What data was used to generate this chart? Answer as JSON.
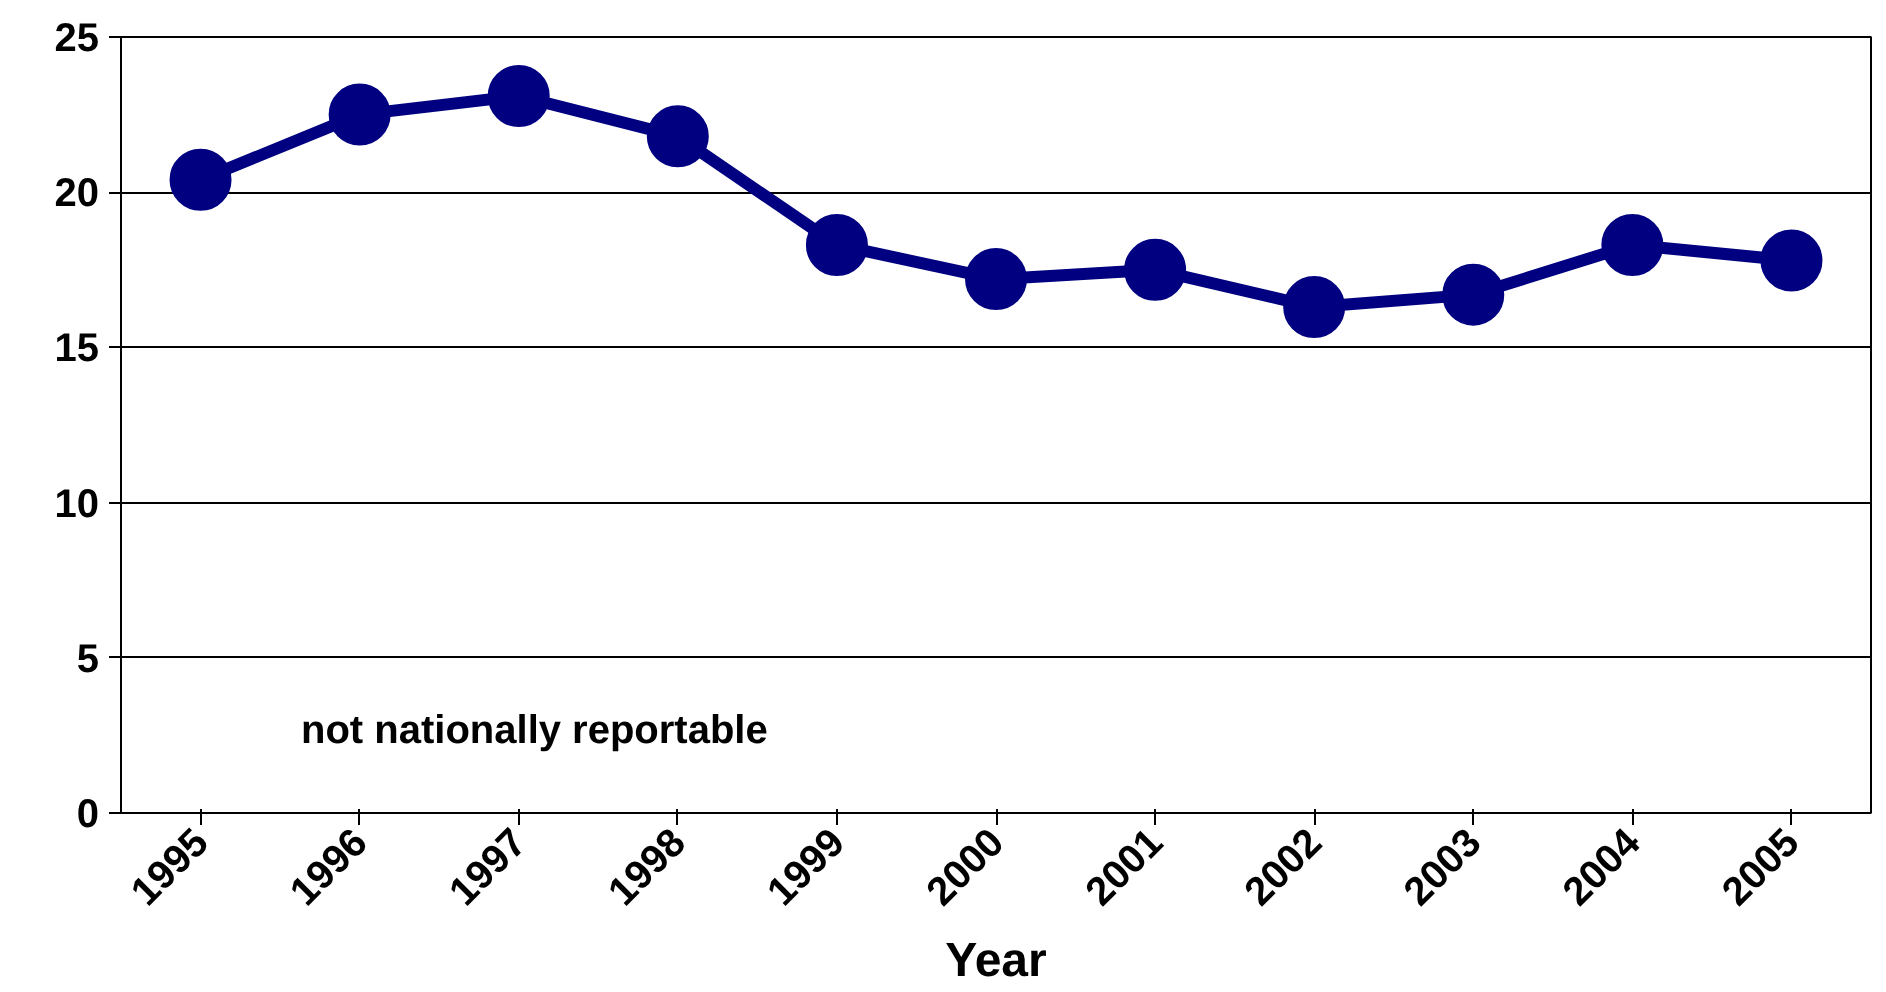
{
  "chart_data": {
    "type": "line",
    "categories": [
      "1995",
      "1996",
      "1997",
      "1998",
      "1999",
      "2000",
      "2001",
      "2002",
      "2003",
      "2004",
      "2005"
    ],
    "series": [
      {
        "color": "#000080",
        "values": [
          20.4,
          22.5,
          23.1,
          21.8,
          18.3,
          17.2,
          17.5,
          16.3,
          16.7,
          18.3,
          17.8
        ]
      }
    ],
    "xlabel": "Year",
    "ylim": [
      0,
      25
    ],
    "yticks": [
      0,
      5,
      10,
      15,
      20,
      25
    ],
    "grid": "y",
    "marker": "circle",
    "line_style": "solid",
    "annotations": [
      "not nationally reportable"
    ]
  }
}
